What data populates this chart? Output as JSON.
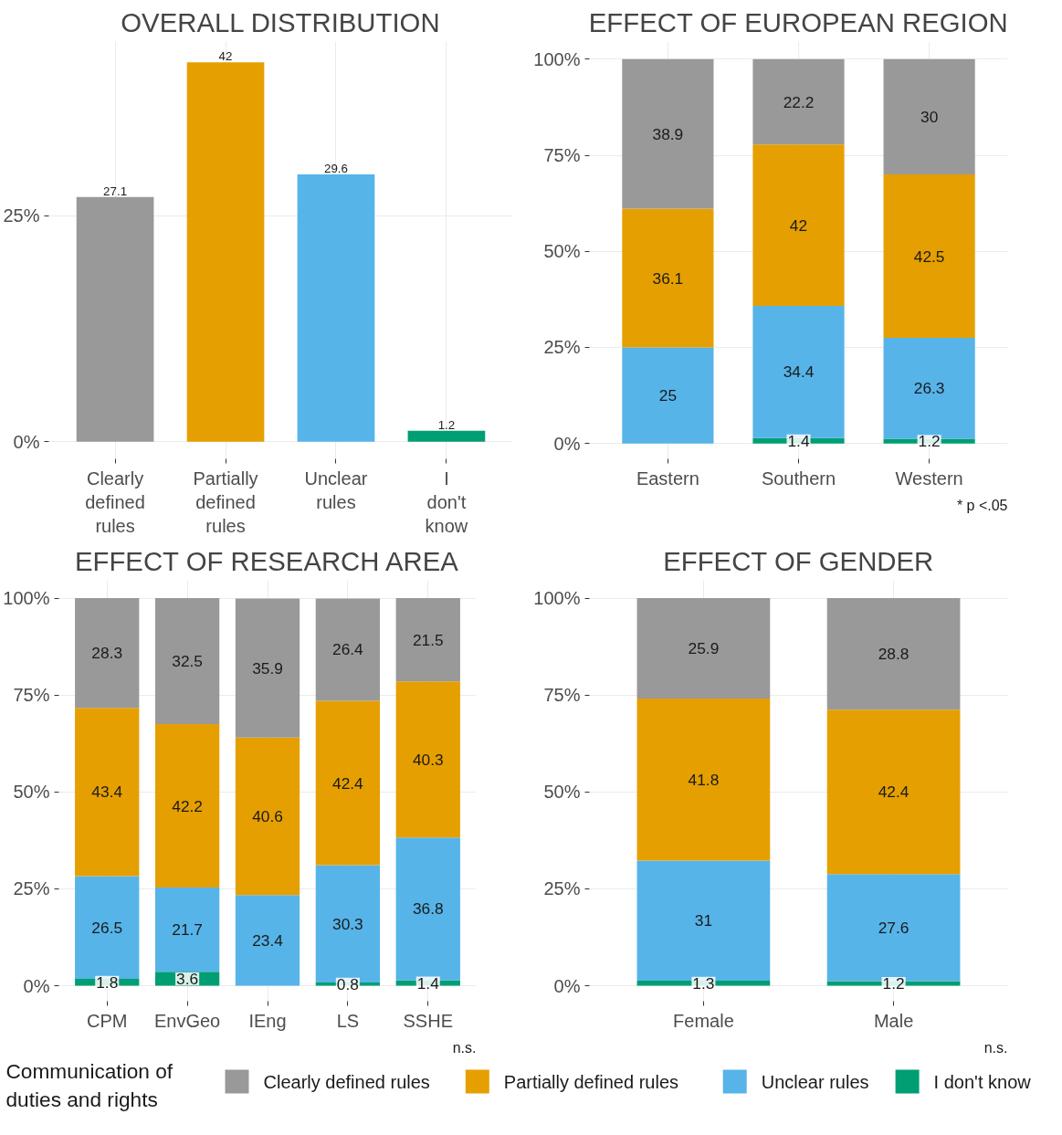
{
  "chart_data": [
    {
      "type": "bar",
      "title": "OVERALL DISTRIBUTION",
      "categories": [
        "Clearly defined rules",
        "Partially defined rules",
        "Unclear rules",
        "I don't know"
      ],
      "values": [
        27.1,
        42,
        29.6,
        1.2
      ],
      "colors": [
        "#999999",
        "#e69f00",
        "#56b4e9",
        "#009e73"
      ],
      "ylim": [
        -1.9,
        44.3
      ],
      "yticks": [
        {
          "value": 0,
          "label": "0%"
        },
        {
          "value": 25,
          "label": "25%"
        }
      ],
      "data_labels": true,
      "grid": true
    },
    {
      "type": "bar",
      "title": "EFFECT OF EUROPEAN REGION",
      "categories": [
        "Eastern",
        "Southern",
        "Western"
      ],
      "stacked": true,
      "series": [
        {
          "name": "I don't know",
          "color": "#009e73",
          "values": [
            null,
            1.4,
            1.2
          ]
        },
        {
          "name": "Unclear rules",
          "color": "#56b4e9",
          "values": [
            25,
            34.4,
            26.3
          ]
        },
        {
          "name": "Partially defined rules",
          "color": "#e69f00",
          "values": [
            36.1,
            42,
            42.5
          ]
        },
        {
          "name": "Clearly defined rules",
          "color": "#999999",
          "values": [
            38.9,
            22.2,
            30
          ]
        }
      ],
      "ylim": [
        -4,
        104.6
      ],
      "yticks": [
        {
          "value": 0,
          "label": "0%"
        },
        {
          "value": 25,
          "label": "25%"
        },
        {
          "value": 50,
          "label": "50%"
        },
        {
          "value": 75,
          "label": "75%"
        },
        {
          "value": 100,
          "label": "100%"
        }
      ],
      "data_labels": true,
      "grid": true,
      "annotations": [
        "* p <.05"
      ],
      "legend": "bottom",
      "legend_title": "Communication of duties and rights"
    },
    {
      "type": "bar",
      "title": "EFFECT OF RESEARCH AREA",
      "categories": [
        "CPM",
        "EnvGeo",
        "IEng",
        "LS",
        "SSHE"
      ],
      "stacked": true,
      "series": [
        {
          "color": "#009e73",
          "values": [
            1.8,
            3.6,
            null,
            0.8,
            1.4
          ]
        },
        {
          "color": "#56b4e9",
          "values": [
            26.5,
            21.7,
            23.4,
            30.3,
            36.8
          ]
        },
        {
          "color": "#e69f00",
          "values": [
            43.4,
            42.2,
            40.6,
            42.4,
            40.3
          ]
        },
        {
          "color": "#999999",
          "values": [
            28.3,
            32.5,
            35.9,
            26.4,
            21.5
          ]
        }
      ],
      "ylim": [
        -4,
        104.6
      ],
      "yticks": [
        {
          "value": 0,
          "label": "0%"
        },
        {
          "value": 25,
          "label": "25%"
        },
        {
          "value": 50,
          "label": "50%"
        },
        {
          "value": 75,
          "label": "75%"
        },
        {
          "value": 100,
          "label": "100%"
        }
      ],
      "data_labels": true,
      "grid": true,
      "annotations": [
        "n.s."
      ]
    },
    {
      "type": "bar",
      "title": "EFFECT OF GENDER",
      "categories": [
        "Female",
        "Male"
      ],
      "stacked": true,
      "series": [
        {
          "color": "#009e73",
          "values": [
            1.3,
            1.2
          ]
        },
        {
          "color": "#56b4e9",
          "values": [
            31,
            27.6
          ]
        },
        {
          "color": "#e69f00",
          "values": [
            41.8,
            42.4
          ]
        },
        {
          "color": "#999999",
          "values": [
            25.9,
            28.8
          ]
        }
      ],
      "ylim": [
        -4,
        104.6
      ],
      "yticks": [
        {
          "value": 0,
          "label": "0%"
        },
        {
          "value": 25,
          "label": "25%"
        },
        {
          "value": 50,
          "label": "50%"
        },
        {
          "value": 75,
          "label": "75%"
        },
        {
          "value": 100,
          "label": "100%"
        }
      ],
      "data_labels": true,
      "grid": true,
      "annotations": [
        "n.s."
      ]
    }
  ]
}
